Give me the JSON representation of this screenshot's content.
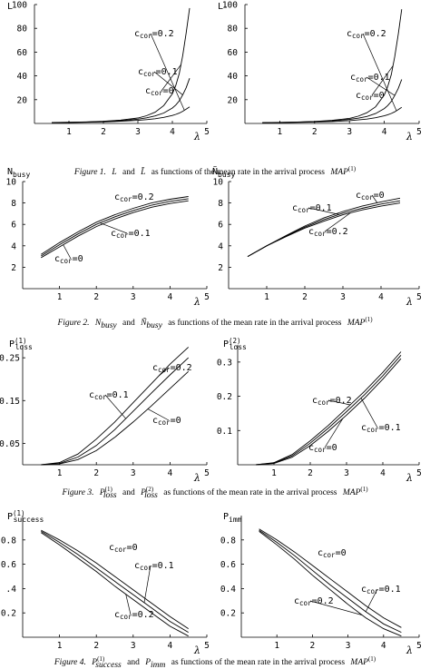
{
  "figures": [
    {
      "caption": {
        "label": "Figure 1.",
        "a": "L",
        "and": "and",
        "b": "L̃",
        "rest": "as functions of the mean rate in the arrival process",
        "map": "MAP",
        "sup": "(1)"
      }
    },
    {
      "caption": {
        "label": "Figure 2.",
        "a": "N",
        "a_sub": "busy",
        "and": "and",
        "b": "Ñ",
        "b_sub": "busy",
        "rest": "as functions of the mean rate in the arrival process",
        "map": "MAP",
        "sup": "(1)"
      }
    },
    {
      "caption": {
        "label": "Figure 3.",
        "a": "P",
        "a_sub": "loss",
        "a_sup": "(1)",
        "and": "and",
        "b": "P",
        "b_sub": "loss",
        "b_sup": "(2)",
        "rest": "as functions of the mean rate in the arrival process",
        "map": "MAP",
        "sup": "(1)"
      }
    },
    {
      "caption": {
        "label": "Figure 4.",
        "a": "P",
        "a_sub": "success",
        "a_sup": "(1)",
        "and": "and",
        "b": "P",
        "b_sub": "imm",
        "rest": "as functions of the mean rate in the arrival process",
        "map": "MAP",
        "sup": "(1)"
      }
    }
  ],
  "chart_data": [
    {
      "type": "line",
      "ylabel": "L",
      "xlabel": "λ",
      "xlim": [
        0,
        5
      ],
      "ylim": [
        0,
        100
      ],
      "xticks": [
        1,
        2,
        3,
        4,
        5
      ],
      "yticks": [
        20,
        40,
        60,
        80,
        100
      ],
      "series": [
        {
          "name": "c_cor=0.2",
          "x": [
            0.5,
            1,
            1.5,
            2,
            2.5,
            3,
            3.25,
            3.5,
            3.75,
            4,
            4.1,
            4.2,
            4.3,
            4.4,
            4.5
          ],
          "y": [
            0.8,
            1,
            1.3,
            1.8,
            2.8,
            4.6,
            6.5,
            9.5,
            15,
            25,
            32,
            42,
            57,
            76,
            97
          ]
        },
        {
          "name": "c_cor=0.1",
          "x": [
            0.5,
            1,
            1.5,
            2,
            2.5,
            3,
            3.25,
            3.5,
            3.75,
            4,
            4.1,
            4.2,
            4.3,
            4.4,
            4.5
          ],
          "y": [
            0.7,
            0.9,
            1.2,
            1.6,
            2.3,
            3.6,
            4.7,
            6.3,
            8.8,
            13,
            15.5,
            19,
            24,
            30,
            38
          ]
        },
        {
          "name": "c_cor=0",
          "x": [
            0.5,
            1,
            1.5,
            2,
            2.5,
            3,
            3.25,
            3.5,
            3.75,
            4,
            4.1,
            4.2,
            4.3,
            4.4,
            4.5
          ],
          "y": [
            0.6,
            0.8,
            1,
            1.3,
            1.8,
            2.6,
            3.2,
            4,
            5.1,
            6.7,
            7.6,
            8.7,
            10.2,
            12,
            14
          ]
        }
      ],
      "annotations": [
        "c_cor=0.2",
        "c_cor=0.1",
        "c_cor=0"
      ]
    },
    {
      "type": "line",
      "ylabel": "L̃",
      "xlabel": "λ",
      "xlim": [
        0,
        5
      ],
      "ylim": [
        0,
        100
      ],
      "xticks": [
        1,
        2,
        3,
        4,
        5
      ],
      "yticks": [
        20,
        40,
        60,
        80,
        100
      ],
      "series": [
        {
          "name": "c_cor=0.2",
          "x": [
            0.5,
            1,
            1.5,
            2,
            2.5,
            3,
            3.25,
            3.5,
            3.75,
            4,
            4.1,
            4.2,
            4.3,
            4.4,
            4.5
          ],
          "y": [
            0.7,
            0.9,
            1.2,
            1.7,
            2.6,
            4.3,
            6.1,
            9,
            14,
            24,
            31,
            41,
            56,
            75,
            96
          ]
        },
        {
          "name": "c_cor=0.1",
          "x": [
            0.5,
            1,
            1.5,
            2,
            2.5,
            3,
            3.25,
            3.5,
            3.75,
            4,
            4.1,
            4.2,
            4.3,
            4.4,
            4.5
          ],
          "y": [
            0.6,
            0.8,
            1.1,
            1.5,
            2.1,
            3.4,
            4.4,
            5.9,
            8.3,
            12.5,
            15,
            18.5,
            23.5,
            29.5,
            37
          ]
        },
        {
          "name": "c_cor=0",
          "x": [
            0.5,
            1,
            1.5,
            2,
            2.5,
            3,
            3.25,
            3.5,
            3.75,
            4,
            4.1,
            4.2,
            4.3,
            4.4,
            4.5
          ],
          "y": [
            0.5,
            0.7,
            0.9,
            1.2,
            1.6,
            2.4,
            3,
            3.7,
            4.8,
            6.4,
            7.3,
            8.4,
            9.8,
            11.6,
            13.5
          ]
        }
      ],
      "annotations": [
        "c_cor=0.2",
        "c_cor=0.1",
        "c_cor=0"
      ]
    },
    {
      "type": "line",
      "ylabel": "Nbusy",
      "xlabel": "λ",
      "xlim": [
        0,
        5
      ],
      "ylim": [
        0,
        10
      ],
      "xticks": [
        1,
        2,
        3,
        4,
        5
      ],
      "yticks": [
        2,
        4,
        6,
        8,
        10
      ],
      "series": [
        {
          "name": "c_cor=0.2",
          "x": [
            0.5,
            1,
            1.5,
            2,
            2.5,
            3,
            3.5,
            4,
            4.5
          ],
          "y": [
            3.2,
            4.3,
            5.3,
            6.2,
            6.9,
            7.5,
            8,
            8.35,
            8.6
          ]
        },
        {
          "name": "c_cor=0.1",
          "x": [
            0.5,
            1,
            1.5,
            2,
            2.5,
            3,
            3.5,
            4,
            4.5
          ],
          "y": [
            3.05,
            4.1,
            5.1,
            6,
            6.7,
            7.3,
            7.8,
            8.15,
            8.4
          ]
        },
        {
          "name": "c_cor=0",
          "x": [
            0.5,
            1,
            1.5,
            2,
            2.5,
            3,
            3.5,
            4,
            4.5
          ],
          "y": [
            2.9,
            3.9,
            4.9,
            5.8,
            6.5,
            7.1,
            7.6,
            7.95,
            8.2
          ]
        }
      ],
      "annotations": [
        "c_cor=0.2",
        "c_cor=0.1",
        "c_cor=0"
      ]
    },
    {
      "type": "line",
      "ylabel": "Ñbusy",
      "xlabel": "λ",
      "xlim": [
        0,
        5
      ],
      "ylim": [
        0,
        10
      ],
      "xticks": [
        1,
        2,
        3,
        4,
        5
      ],
      "yticks": [
        2,
        4,
        6,
        8,
        10
      ],
      "series": [
        {
          "name": "c_cor=0",
          "x": [
            0.5,
            1,
            1.5,
            2,
            2.5,
            3,
            3.5,
            4,
            4.5
          ],
          "y": [
            3,
            4,
            4.95,
            5.85,
            6.6,
            7.2,
            7.7,
            8.1,
            8.45
          ]
        },
        {
          "name": "c_cor=0.1",
          "x": [
            0.5,
            1,
            1.5,
            2,
            2.5,
            3,
            3.5,
            4,
            4.5
          ],
          "y": [
            3,
            4,
            4.9,
            5.75,
            6.45,
            7.05,
            7.5,
            7.9,
            8.2
          ]
        },
        {
          "name": "c_cor=0.2",
          "x": [
            0.5,
            1,
            1.5,
            2,
            2.5,
            3,
            3.5,
            4,
            4.5
          ],
          "y": [
            3,
            4,
            4.85,
            5.65,
            6.3,
            6.9,
            7.35,
            7.7,
            8
          ]
        }
      ],
      "annotations": [
        "c_cor=0",
        "c_cor=0.1",
        "c_cor=0.2"
      ]
    },
    {
      "type": "line",
      "ylabel": "P(1)loss",
      "xlabel": "λ",
      "xlim": [
        0,
        5
      ],
      "ylim": [
        0,
        0.28
      ],
      "xticks": [
        1,
        2,
        3,
        4,
        5
      ],
      "yticks": [
        0.05,
        0.15,
        0.25
      ],
      "ytick_labels": [
        "0.05",
        "0.15",
        "0.25"
      ],
      "series": [
        {
          "name": "c_cor=0.2",
          "x": [
            0.5,
            1,
            1.5,
            2,
            2.5,
            3,
            3.5,
            4,
            4.5
          ],
          "y": [
            0,
            0.005,
            0.025,
            0.06,
            0.1,
            0.145,
            0.19,
            0.235,
            0.275
          ]
        },
        {
          "name": "c_cor=0.1",
          "x": [
            0.5,
            1,
            1.5,
            2,
            2.5,
            3,
            3.5,
            4,
            4.5
          ],
          "y": [
            0,
            0.003,
            0.018,
            0.045,
            0.082,
            0.125,
            0.168,
            0.21,
            0.25
          ]
        },
        {
          "name": "c_cor=0",
          "x": [
            0.5,
            1,
            1.5,
            2,
            2.5,
            3,
            3.5,
            4,
            4.5
          ],
          "y": [
            0,
            0.002,
            0.012,
            0.033,
            0.064,
            0.1,
            0.138,
            0.178,
            0.218
          ]
        }
      ],
      "annotations": [
        "c_cor=0.2",
        "c_cor=0.1",
        "c_cor=0"
      ]
    },
    {
      "type": "line",
      "ylabel": "P(2)loss",
      "xlabel": "λ",
      "xlim": [
        0,
        5
      ],
      "ylim": [
        0,
        0.35
      ],
      "xticks": [
        1,
        2,
        3,
        4,
        5
      ],
      "yticks": [
        0.1,
        0.2,
        0.3
      ],
      "ytick_labels": [
        "0.1",
        "0.2",
        "0.3"
      ],
      "series": [
        {
          "name": "c_cor=0.2",
          "x": [
            0.5,
            1,
            1.5,
            2,
            2.5,
            3,
            3.5,
            4,
            4.5
          ],
          "y": [
            0,
            0.006,
            0.03,
            0.07,
            0.115,
            0.165,
            0.215,
            0.27,
            0.33
          ]
        },
        {
          "name": "c_cor=0.1",
          "x": [
            0.5,
            1,
            1.5,
            2,
            2.5,
            3,
            3.5,
            4,
            4.5
          ],
          "y": [
            0,
            0.005,
            0.026,
            0.063,
            0.107,
            0.155,
            0.205,
            0.26,
            0.32
          ]
        },
        {
          "name": "c_cor=0",
          "x": [
            0.5,
            1,
            1.5,
            2,
            2.5,
            3,
            3.5,
            4,
            4.5
          ],
          "y": [
            0,
            0.004,
            0.022,
            0.056,
            0.098,
            0.145,
            0.195,
            0.25,
            0.31
          ]
        }
      ],
      "annotations": [
        "c_cor=0.2",
        "c_cor=0.1",
        "c_cor=0"
      ]
    },
    {
      "type": "line",
      "ylabel": "P(1)success",
      "xlabel": "λ",
      "xlim": [
        0,
        5
      ],
      "ylim": [
        0,
        1
      ],
      "xticks": [
        1,
        2,
        3,
        4,
        5
      ],
      "yticks": [
        0.2,
        0.4,
        0.6,
        0.8
      ],
      "ytick_labels": [
        "0.2",
        ".4",
        "0.6",
        "0.8"
      ],
      "series": [
        {
          "name": "c_cor=0",
          "x": [
            0.5,
            1,
            1.5,
            2,
            2.5,
            3,
            3.5,
            4,
            4.5
          ],
          "y": [
            0.88,
            0.8,
            0.71,
            0.61,
            0.5,
            0.39,
            0.28,
            0.17,
            0.07
          ]
        },
        {
          "name": "c_cor=0.1",
          "x": [
            0.5,
            1,
            1.5,
            2,
            2.5,
            3,
            3.5,
            4,
            4.5
          ],
          "y": [
            0.87,
            0.78,
            0.68,
            0.57,
            0.46,
            0.35,
            0.24,
            0.13,
            0.04
          ]
        },
        {
          "name": "c_cor=0.2",
          "x": [
            0.5,
            1,
            1.5,
            2,
            2.5,
            3,
            3.5,
            4,
            4.5
          ],
          "y": [
            0.86,
            0.76,
            0.65,
            0.54,
            0.42,
            0.31,
            0.2,
            0.09,
            0.01
          ]
        }
      ],
      "annotations": [
        "c_cor=0",
        "c_cor=0.1",
        "c_cor=0.2"
      ]
    },
    {
      "type": "line",
      "ylabel": "Pimm",
      "xlabel": "λ",
      "xlim": [
        0,
        5
      ],
      "ylim": [
        0,
        1
      ],
      "xticks": [
        1,
        2,
        3,
        4,
        5
      ],
      "yticks": [
        0.2,
        0.4,
        0.6,
        0.8
      ],
      "ytick_labels": [
        "0.2",
        "0.4",
        "0.6",
        "0.8"
      ],
      "series": [
        {
          "name": "c_cor=0",
          "x": [
            0.5,
            1,
            1.5,
            2,
            2.5,
            3,
            3.5,
            4,
            4.5
          ],
          "y": [
            0.89,
            0.8,
            0.7,
            0.59,
            0.48,
            0.37,
            0.26,
            0.16,
            0.08
          ]
        },
        {
          "name": "c_cor=0.1",
          "x": [
            0.5,
            1,
            1.5,
            2,
            2.5,
            3,
            3.5,
            4,
            4.5
          ],
          "y": [
            0.88,
            0.78,
            0.67,
            0.55,
            0.43,
            0.32,
            0.21,
            0.11,
            0.04
          ]
        },
        {
          "name": "c_cor=0.2",
          "x": [
            0.5,
            1,
            1.5,
            2,
            2.5,
            3,
            3.5,
            4,
            4.5
          ],
          "y": [
            0.87,
            0.76,
            0.64,
            0.51,
            0.39,
            0.27,
            0.16,
            0.07,
            0.01
          ]
        }
      ],
      "annotations": [
        "c_cor=0",
        "c_cor=0.1",
        "c_cor=0.2"
      ]
    }
  ]
}
